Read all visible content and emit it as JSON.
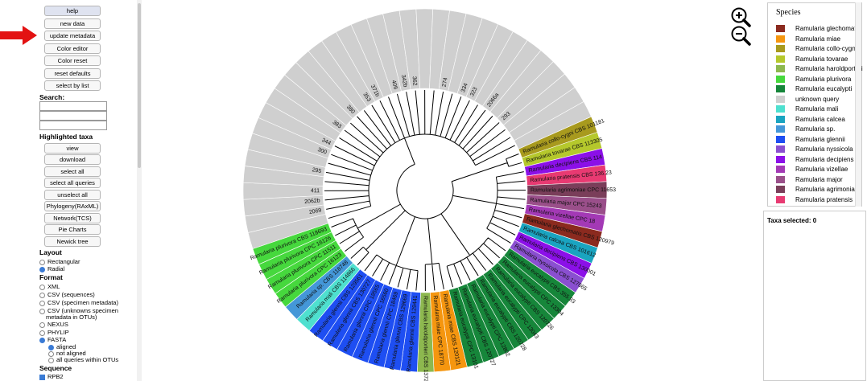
{
  "sidebar": {
    "buttons": {
      "help": "help",
      "new_data": "new data",
      "update_metadata": "update metadata",
      "color_editor": "Color editor",
      "color_reset": "Color reset",
      "reset_defaults": "reset defaults",
      "select_by_list": "select by list"
    },
    "search_label": "Search:",
    "highlighted_label": "Highlighted taxa",
    "highlighted_buttons": {
      "view": "view",
      "download": "download",
      "select_all": "select all",
      "select_all_queries": "select all queries",
      "unselect_all": "unselect all",
      "phylogeny": "Phylogeny(RAxML)",
      "network": "Network(TCS)",
      "pie_charts": "Pie Charts",
      "newick_tree": "Newick tree"
    },
    "layout_label": "Layout",
    "layout_options": [
      "Rectangular",
      "Radial"
    ],
    "layout_selected": "Radial",
    "format_label": "Format",
    "format_options": {
      "xml": "XML",
      "csv_seq": "CSV (sequences)",
      "csv_meta": "CSV (specimen metadata)",
      "csv_unknowns_1": "CSV (unknowns specimen",
      "csv_unknowns_2": "metadata in OTUs)",
      "nexus": "NEXUS",
      "phylip": "PHYLIP",
      "fasta": "FASTA"
    },
    "format_selected": "FASTA",
    "fasta_options": [
      "aligned",
      "not aligned",
      "all queries within OTUs"
    ],
    "fasta_selected": "aligned",
    "sequence_label": "Sequence",
    "sequence_options": [
      "RPB2"
    ]
  },
  "legend": {
    "title": "Species",
    "items": [
      {
        "name": "Ramularia glechomatis",
        "color": "#8b2a1f"
      },
      {
        "name": "Ramularia miae",
        "color": "#f5960f"
      },
      {
        "name": "Ramularia collo-cygni",
        "color": "#a89a1e"
      },
      {
        "name": "Ramularia tovarae",
        "color": "#b5c82c"
      },
      {
        "name": "Ramularia haroldporteri",
        "color": "#8db84f"
      },
      {
        "name": "Ramularia plurivora",
        "color": "#46d83d"
      },
      {
        "name": "Ramularia eucalypti",
        "color": "#16863a"
      },
      {
        "name": "unknown query",
        "color": "#cfcfcf"
      },
      {
        "name": "Ramularia mali",
        "color": "#4ee0cf"
      },
      {
        "name": "Ramularia calcea",
        "color": "#1aa4c0"
      },
      {
        "name": "Ramularia sp.",
        "color": "#4497d8"
      },
      {
        "name": "Ramularia glennii",
        "color": "#1e4ef2"
      },
      {
        "name": "Ramularia nyssicola",
        "color": "#8a4fd0"
      },
      {
        "name": "Ramularia decipiens",
        "color": "#8b10e8"
      },
      {
        "name": "Ramularia vizellae",
        "color": "#a339b5"
      },
      {
        "name": "Ramularia major",
        "color": "#9a4f8a"
      },
      {
        "name": "Ramularia agrimoniae",
        "color": "#7a3e5a"
      },
      {
        "name": "Ramularia pratensis",
        "color": "#e83a72"
      }
    ]
  },
  "taxa_panel": {
    "label": "Taxa selected: 0"
  },
  "tree": {
    "wedges": [
      {
        "label": "Ramularia collo-cygni CBS 101181",
        "color": "#a89a1e"
      },
      {
        "label": "Ramularia tovarae CBS 113305",
        "color": "#b5c82c"
      },
      {
        "label": "Ramularia decipiens CBS 114",
        "color": "#8b10e8"
      },
      {
        "label": "Ramularia pratensis CBS 136.23",
        "color": "#e83a72"
      },
      {
        "label": "Ramularia agrimoniae CPC 11653",
        "color": "#7a3e5a"
      },
      {
        "label": "Ramularia major CPC 15243",
        "color": "#9a4f8a"
      },
      {
        "label": "Ramularia vizellae CPC 18",
        "color": "#a339b5"
      },
      {
        "label": "Ramularia glechomatis CBS 120979",
        "color": "#8b2a1f"
      },
      {
        "label": "Ramularia calcea CBS 101612",
        "color": "#1aa4c0"
      },
      {
        "label": "Ramularia decipiens CBS 130001",
        "color": "#8b10e8"
      },
      {
        "label": "Ramularia nyssicola CBS 127665",
        "color": "#8a4fd0"
      },
      {
        "label": "Ramularia eucalypti CBS 355.93",
        "color": "#16863a"
      },
      {
        "label": "Ramularia eucalypti CPC 13304",
        "color": "#16863a"
      },
      {
        "label": "Ramularia eucalypti CBS 120726",
        "color": "#16863a"
      },
      {
        "label": "Ramularia eucalypti CPC 13043",
        "color": "#16863a"
      },
      {
        "label": "Ramularia eucalypti CBS 120728",
        "color": "#16863a"
      },
      {
        "label": "Ramularia eucalypti CPC 12802",
        "color": "#16863a"
      },
      {
        "label": "Ramularia eucalypti CBS 120727",
        "color": "#16863a"
      },
      {
        "label": "Ramularia eucalypti CPC 13101",
        "color": "#16863a"
      },
      {
        "label": "Ramularia miae CBS 120121",
        "color": "#f5960f"
      },
      {
        "label": "Ramularia miae CPC 18770",
        "color": "#f5960f"
      },
      {
        "label": "Ramularia haroldporteri CBS 137272",
        "color": "#8db84f"
      },
      {
        "label": "Ramularia glennii CBS 129441",
        "color": "#1e4ef2"
      },
      {
        "label": "Ramularia glennii CBS 129669",
        "color": "#1e4ef2"
      },
      {
        "label": "Ramularia glennii CPC 18469",
        "color": "#1e4ef2"
      },
      {
        "label": "Ramularia glennii CPC 16560",
        "color": "#1e4ef2"
      },
      {
        "label": "Ramularia glennii CPC 18565",
        "color": "#1e4ef2"
      },
      {
        "label": "Ramularia glennii CBS 130727",
        "color": "#1e4ef2"
      },
      {
        "label": "Ramularia glennii CBS 129561",
        "color": "#1e4ef2"
      },
      {
        "label": "Ramularia mali CBS 114866",
        "color": "#4ee0cf"
      },
      {
        "label": "Ramularia sp. CBS 118748",
        "color": "#4497d8"
      },
      {
        "label": "Ramularia plurivora CPC 16123",
        "color": "#46d83d"
      },
      {
        "label": "Ramularia plurivora CPC 11511",
        "color": "#46d83d"
      },
      {
        "label": "Ramularia plurivora CPC 16126",
        "color": "#46d83d"
      },
      {
        "label": "Ramularia plurivora CBS 118693",
        "color": "#46d83d"
      },
      {
        "label": "",
        "color": "#cfcfcf"
      },
      {
        "label": "2069",
        "color": "#cfcfcf"
      },
      {
        "label": "2062b",
        "color": "#cfcfcf"
      },
      {
        "label": "411",
        "color": "#cfcfcf"
      },
      {
        "label": "",
        "color": "#cfcfcf"
      },
      {
        "label": "295",
        "color": "#cfcfcf"
      },
      {
        "label": "",
        "color": "#cfcfcf"
      },
      {
        "label": "300",
        "color": "#cfcfcf"
      },
      {
        "label": "344",
        "color": "#cfcfcf"
      },
      {
        "label": "",
        "color": "#cfcfcf"
      },
      {
        "label": "383",
        "color": "#cfcfcf"
      },
      {
        "label": "",
        "color": "#cfcfcf"
      },
      {
        "label": "380",
        "color": "#cfcfcf"
      },
      {
        "label": "",
        "color": "#cfcfcf"
      },
      {
        "label": "353",
        "color": "#cfcfcf"
      },
      {
        "label": "371b",
        "color": "#cfcfcf"
      },
      {
        "label": "",
        "color": "#cfcfcf"
      },
      {
        "label": "406",
        "color": "#cfcfcf"
      },
      {
        "label": "342b",
        "color": "#cfcfcf"
      },
      {
        "label": "362",
        "color": "#cfcfcf"
      },
      {
        "label": "",
        "color": "#cfcfcf"
      },
      {
        "label": "",
        "color": "#cfcfcf"
      },
      {
        "label": "274",
        "color": "#cfcfcf"
      },
      {
        "label": "",
        "color": "#cfcfcf"
      },
      {
        "label": "334",
        "color": "#cfcfcf"
      },
      {
        "label": "323",
        "color": "#cfcfcf"
      },
      {
        "label": "",
        "color": "#cfcfcf"
      },
      {
        "label": "2066a",
        "color": "#cfcfcf"
      },
      {
        "label": "",
        "color": "#cfcfcf"
      },
      {
        "label": "293",
        "color": "#cfcfcf"
      },
      {
        "label": "",
        "color": "#cfcfcf"
      },
      {
        "label": "",
        "color": "#cfcfcf"
      },
      {
        "label": "",
        "color": "#cfcfcf"
      }
    ]
  }
}
